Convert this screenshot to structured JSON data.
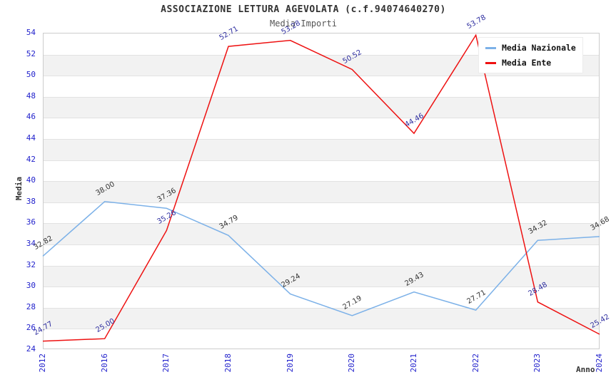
{
  "title": "ASSOCIAZIONE LETTURA AGEVOLATA (c.f.94074640270)",
  "subtitle": "Media Importi",
  "chart_data": {
    "type": "line",
    "categories": [
      "2012",
      "2016",
      "2017",
      "2018",
      "2019",
      "2020",
      "2021",
      "2022",
      "2023",
      "2024"
    ],
    "series": [
      {
        "name": "Media Nazionale",
        "color": "#7cb1e8",
        "label_color": "#333333",
        "values": [
          32.82,
          38.0,
          37.36,
          34.79,
          29.24,
          27.19,
          29.43,
          27.71,
          34.32,
          34.68
        ]
      },
      {
        "name": "Media Ente",
        "color": "#ee1111",
        "label_color": "#2d2d9f",
        "values": [
          24.77,
          25.0,
          35.26,
          52.71,
          53.28,
          50.52,
          44.46,
          53.78,
          28.48,
          25.42
        ]
      }
    ],
    "xlabel": "Anno",
    "ylabel": "Media",
    "ylim": [
      24,
      54
    ],
    "ytick_step": 2,
    "yticks": [
      24,
      26,
      28,
      30,
      32,
      34,
      36,
      38,
      40,
      42,
      44,
      46,
      48,
      50,
      52,
      54
    ],
    "legend_position": "top-right",
    "grid": "horizontal-bands",
    "band_color": "#f2f2f2",
    "gridline_color": "#e2e2e2",
    "tick_color": "#2222cc"
  }
}
